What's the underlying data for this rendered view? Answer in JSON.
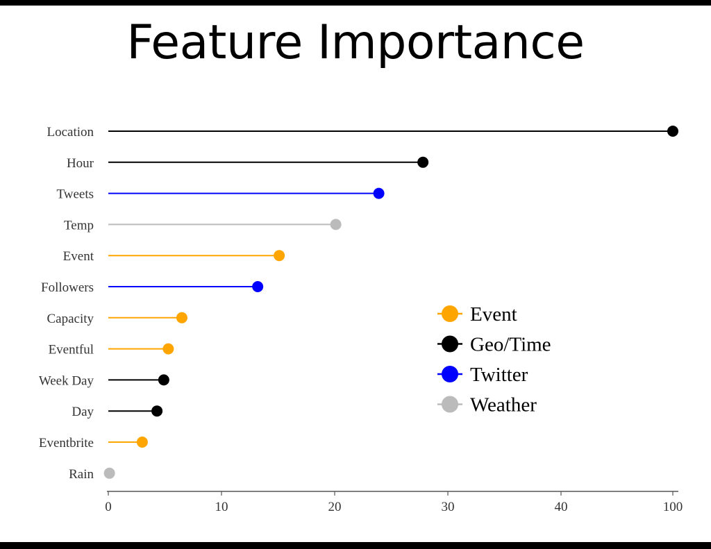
{
  "title": "Feature Importance",
  "colors": {
    "event": "#FFA500",
    "geo_time": "#000000",
    "twitter": "#0000FF",
    "weather": "#BBBBBB"
  },
  "chart_data": {
    "type": "lollipop",
    "title": "",
    "xlabel": "",
    "ylabel": "",
    "xlim": [
      0,
      100
    ],
    "xticks": [
      0,
      10,
      20,
      30,
      40,
      100
    ],
    "x_axis_note": "axis scale breaks between 40 and 100",
    "grid": false,
    "legend_position": "right-center",
    "categories": [
      "Location",
      "Hour",
      "Tweets",
      "Temp",
      "Event",
      "Followers",
      "Capacity",
      "Eventful",
      "Week Day",
      "Day",
      "Eventbrite",
      "Rain"
    ],
    "values": [
      100,
      27.8,
      23.9,
      20.1,
      15.1,
      13.2,
      6.5,
      5.3,
      4.9,
      4.3,
      3.0,
      0.1
    ],
    "groups": [
      "Geo/Time",
      "Geo/Time",
      "Twitter",
      "Weather",
      "Event",
      "Twitter",
      "Event",
      "Event",
      "Geo/Time",
      "Geo/Time",
      "Event",
      "Weather"
    ],
    "legend": [
      {
        "name": "Event",
        "color": "#FFA500"
      },
      {
        "name": "Geo/Time",
        "color": "#000000"
      },
      {
        "name": "Twitter",
        "color": "#0000FF"
      },
      {
        "name": "Weather",
        "color": "#BBBBBB"
      }
    ]
  }
}
